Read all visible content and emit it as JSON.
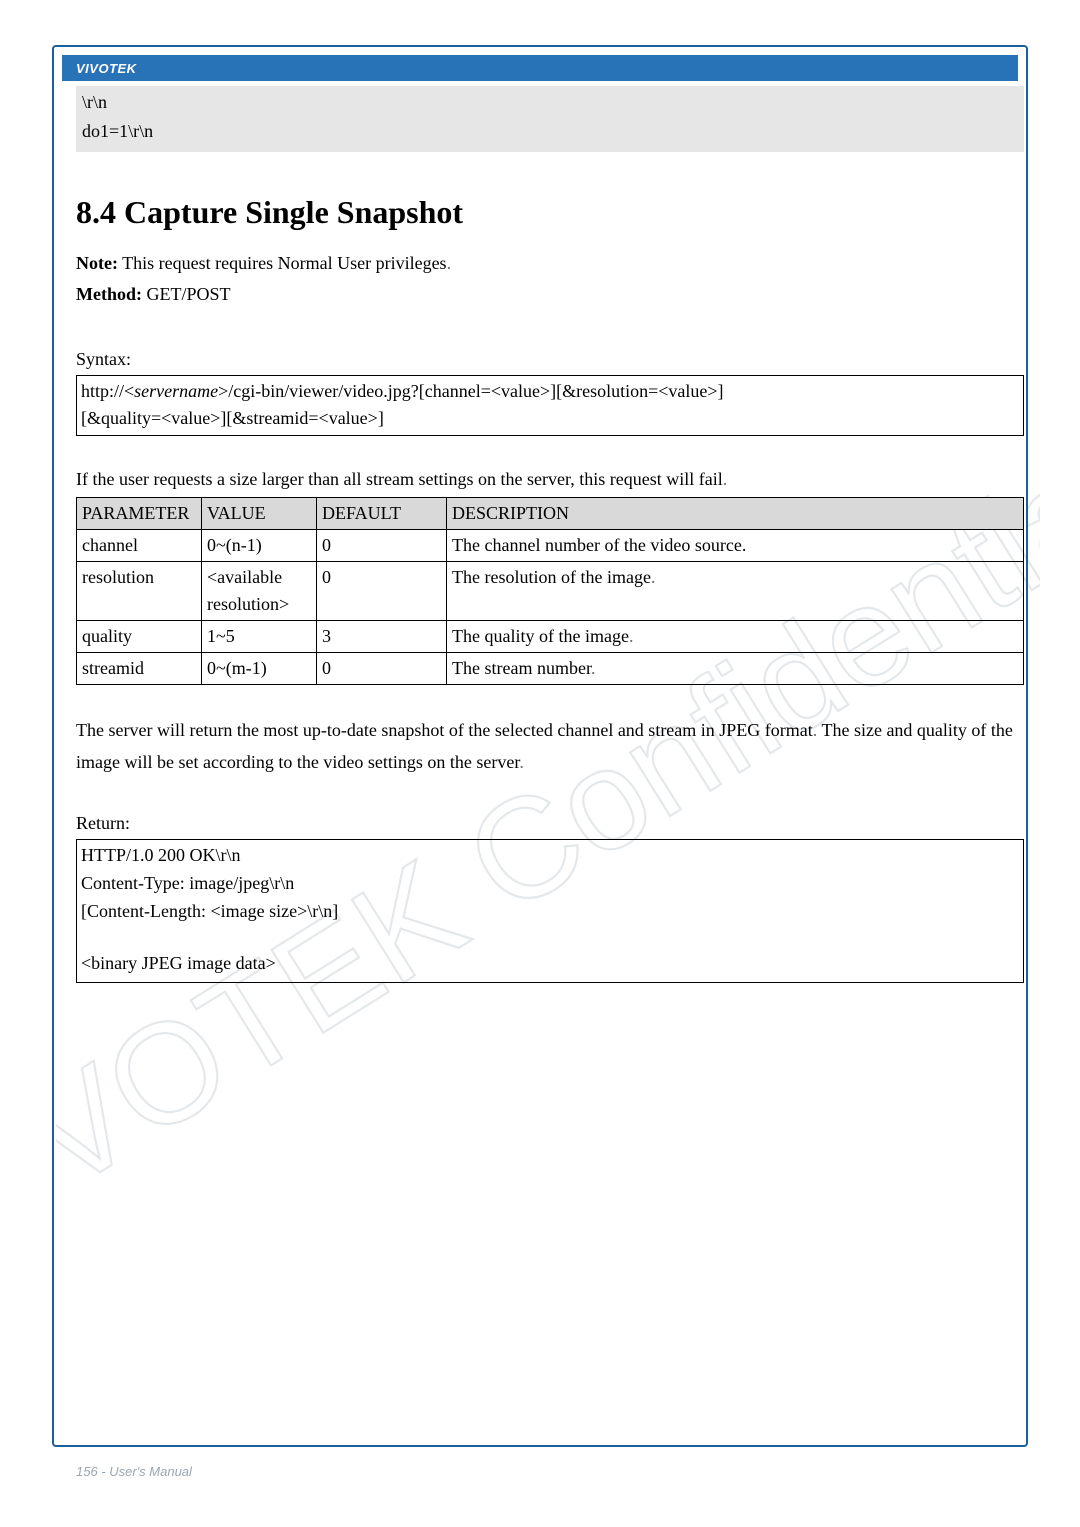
{
  "header": {
    "brand": "VIVOTEK"
  },
  "code_prev": {
    "line1": "\\r\\n",
    "line2": "do1=1\\r\\n"
  },
  "section": {
    "title": "8.4 Capture Single Snapshot",
    "note_bold": "Note:",
    "note_text": " This request requires Normal User privileges",
    "note_period": ".",
    "method_bold": "Method:",
    "method_text": " GET/POST"
  },
  "syntax": {
    "label": "Syntax:",
    "line1_pre": "http://<",
    "line1_italic": "servername",
    "line1_post": ">/cgi-bin/viewer/video.jpg?[channel=<value>][&resolution=<value>]",
    "line2": "[&quality=<value>][&streamid=<value>]"
  },
  "fail_note": "If the user requests a size larger than all stream settings on the server, this request will fail",
  "fail_note_period": ".",
  "table": {
    "headers": {
      "param": "PARAMETER",
      "value": "VALUE",
      "default": "DEFAULT",
      "desc": "DESCRIPTION"
    },
    "rows": [
      {
        "param": "channel",
        "value": "0~(n-1)",
        "default": "0",
        "desc": "The channel number of the video source.",
        "desc_period": ""
      },
      {
        "param": "resolution",
        "value": "<available resolution>",
        "default": "0",
        "desc": "The resolution of the image",
        "desc_period": "."
      },
      {
        "param": "quality",
        "value": "1~5",
        "default": "3",
        "desc": "The quality of the image",
        "desc_period": "."
      },
      {
        "param": "streamid",
        "value": "0~(m-1)",
        "default": "0",
        "desc": "The stream number",
        "desc_period": "."
      }
    ]
  },
  "server_para": {
    "l1a": "The server will return the most up-to-date snapshot of the selected channel and stream in JPEG format",
    "l1p": ".",
    "l2a": "The size and quality of the image will be set according to the video settings on the server",
    "l2p": "."
  },
  "return": {
    "label": "Return:",
    "l1": "HTTP/1.0 200 OK\\r\\n",
    "l2": "Content-Type: image/jpeg\\r\\n",
    "l3": "[Content-Length: <image size>\\r\\n]",
    "l4": "<binary JPEG image data>"
  },
  "footer": {
    "text": "156 - User's Manual"
  },
  "colors": {
    "border": "#1a5f9e",
    "header_bg": "#2873b8",
    "code_bg": "#e6e6e6",
    "th_bg": "#d9d9d9",
    "dim": "#6b6b6b",
    "footer": "#9aa6b0"
  }
}
